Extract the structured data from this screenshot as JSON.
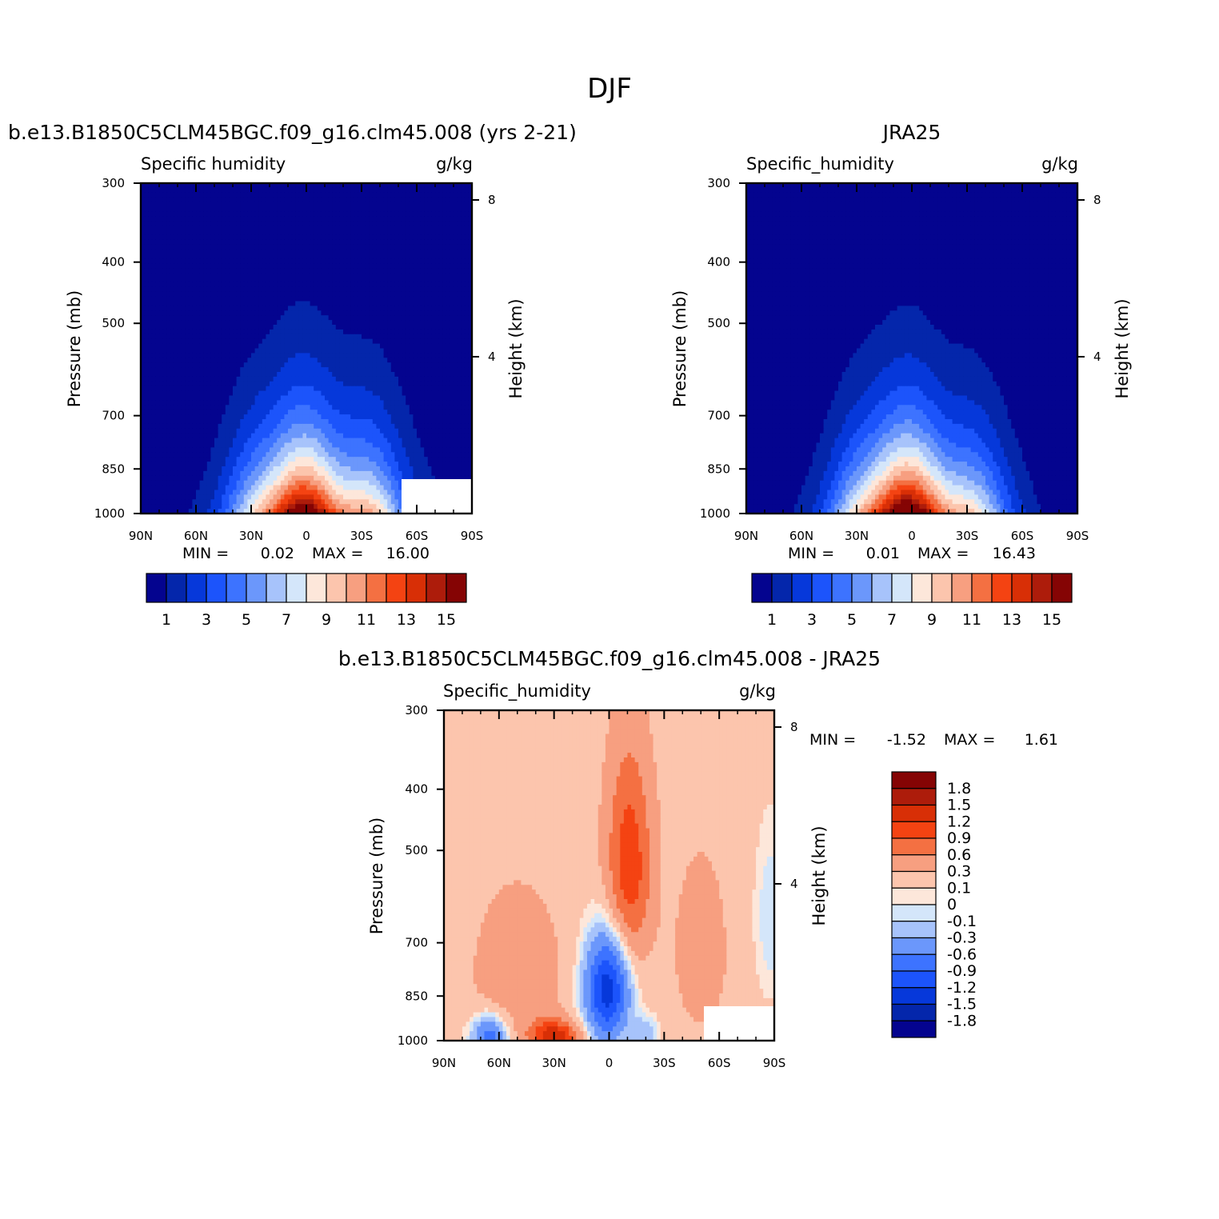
{
  "figure": {
    "title": "DJF"
  },
  "palettes": {
    "abs": [
      "#04048f",
      "#0426ab",
      "#0638da",
      "#1c54fb",
      "#3d73ff",
      "#6b97fb",
      "#a7c3fb",
      "#d4e6fa",
      "#fde7da",
      "#fcc5ad",
      "#f79f80",
      "#f47042",
      "#f44312",
      "#d82f06",
      "#ad1c0b",
      "#850404"
    ],
    "diff": [
      "#04048f",
      "#0426ab",
      "#0638da",
      "#1c54fb",
      "#3d73ff",
      "#6b97fb",
      "#a7c3fb",
      "#d4e6fa",
      "#fde7da",
      "#fcc5ad",
      "#f79f80",
      "#f47042",
      "#f44312",
      "#d82f06",
      "#ad1c0b",
      "#850404"
    ]
  },
  "chart_data": [
    {
      "id": "model",
      "type": "heatmap",
      "title": "b.e13.B1850C5CLM45BGC.f09_g16.clm45.008 (yrs 2-21)",
      "variable": "Specific humidity",
      "units": "g/kg",
      "ylabel": "Pressure (mb)",
      "ylabel_right": "Height (km)",
      "x_ticks": [
        "90N",
        "60N",
        "30N",
        "0",
        "30S",
        "60S",
        "90S"
      ],
      "y_ticks": [
        "300",
        "400",
        "500",
        "700",
        "850",
        "1000"
      ],
      "y_ticks_right": [
        "8",
        "4"
      ],
      "min_label": "MIN =",
      "min_value": "0.02",
      "max_label": "MAX =",
      "max_value": "16.00",
      "colorbar_labels": [
        "1",
        "3",
        "5",
        "7",
        "9",
        "11",
        "13",
        "15"
      ],
      "field": {
        "peak": 16.0,
        "lat_center": -5,
        "lat_width": 30,
        "scale_height_km": 1.9
      },
      "missing_region": true
    },
    {
      "id": "obs",
      "type": "heatmap",
      "title": "JRA25",
      "variable": "Specific_humidity",
      "units": "g/kg",
      "ylabel": "Pressure (mb)",
      "ylabel_right": "Height (km)",
      "x_ticks": [
        "90N",
        "60N",
        "30N",
        "0",
        "30S",
        "60S",
        "90S"
      ],
      "y_ticks": [
        "300",
        "400",
        "500",
        "700",
        "850",
        "1000"
      ],
      "y_ticks_right": [
        "8",
        "4"
      ],
      "min_label": "MIN =",
      "min_value": "0.01",
      "max_label": "MAX =",
      "max_value": "16.43",
      "colorbar_labels": [
        "1",
        "3",
        "5",
        "7",
        "9",
        "11",
        "13",
        "15"
      ],
      "field": {
        "peak": 16.43,
        "lat_center": -2,
        "lat_width": 29,
        "scale_height_km": 1.85
      },
      "missing_region": false
    },
    {
      "id": "diff",
      "type": "heatmap",
      "title": "b.e13.B1850C5CLM45BGC.f09_g16.clm45.008 - JRA25",
      "variable": "Specific_humidity",
      "units": "g/kg",
      "ylabel": "Pressure (mb)",
      "ylabel_right": "Height (km)",
      "x_ticks": [
        "90N",
        "60N",
        "30N",
        "0",
        "30S",
        "60S",
        "90S"
      ],
      "y_ticks": [
        "300",
        "400",
        "500",
        "700",
        "850",
        "1000"
      ],
      "y_ticks_right": [
        "8",
        "4"
      ],
      "min_label": "MIN =",
      "min_value": "-1.52",
      "max_label": "MAX =",
      "max_value": "1.61",
      "colorbar_labels": [
        "1.8",
        "1.5",
        "1.2",
        "0.9",
        "0.6",
        "0.3",
        "0.1",
        "0",
        "-0.1",
        "-0.3",
        "-0.6",
        "-0.9",
        "-1.2",
        "-1.5",
        "-1.8"
      ],
      "missing_region": true
    }
  ]
}
